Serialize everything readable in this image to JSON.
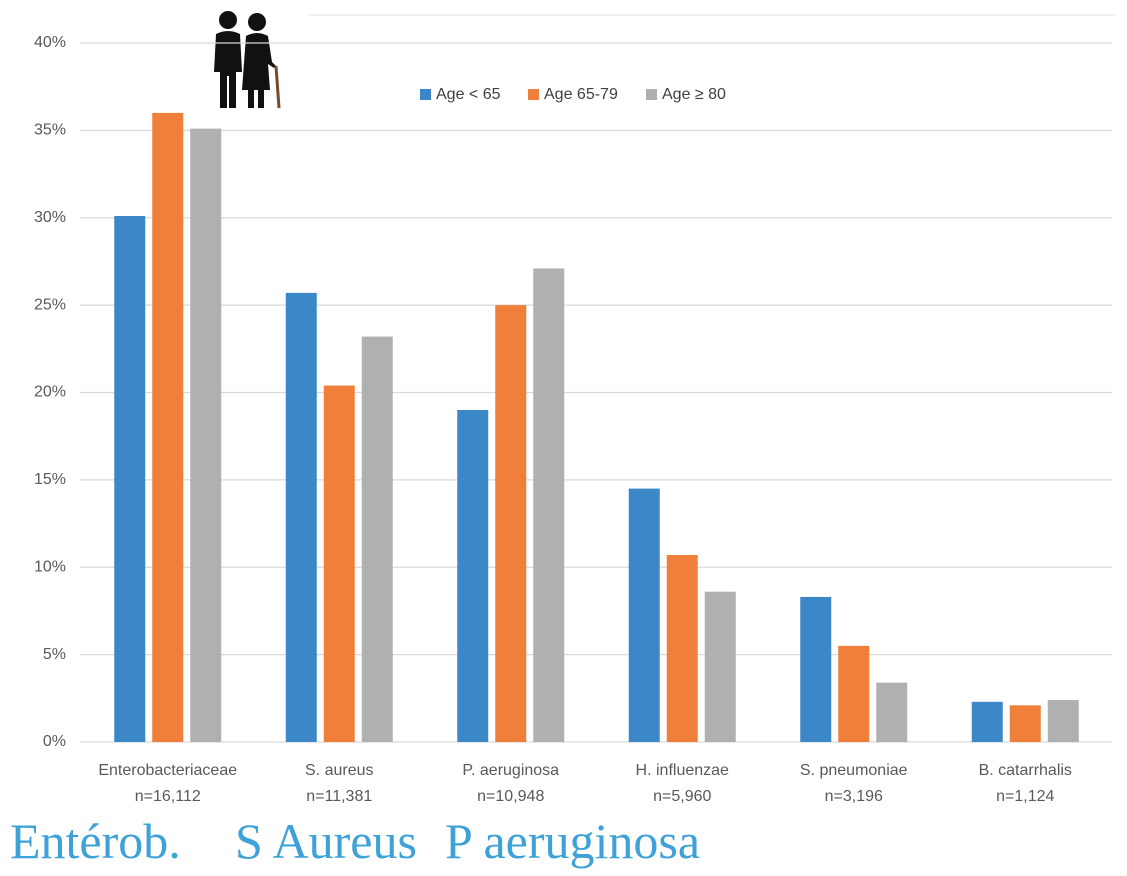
{
  "chart_data": {
    "type": "bar",
    "categories": [
      "Enterobacteriaceae",
      "S. aureus",
      "P. aeruginosa",
      "H. influenzae",
      "S. pneumoniae",
      "B. catarrhalis"
    ],
    "category_sublabels": [
      "n=16,112",
      "n=11,381",
      "n=10,948",
      "n=5,960",
      "n=3,196",
      "n=1,124"
    ],
    "series": [
      {
        "name": "Age < 65",
        "color": "#3c87c8",
        "values": [
          30.1,
          25.7,
          19.0,
          14.5,
          8.3,
          2.3
        ]
      },
      {
        "name": "Age 65-79",
        "color": "#ef7f3a",
        "values": [
          36.0,
          20.4,
          25.0,
          10.7,
          5.5,
          2.1
        ]
      },
      {
        "name": "Age ≥ 80",
        "color": "#b0b0b1",
        "values": [
          35.1,
          23.2,
          27.1,
          8.6,
          3.4,
          2.4
        ]
      }
    ],
    "ylim": [
      0,
      40
    ],
    "yticks": [
      {
        "value": 0,
        "label": "0%"
      },
      {
        "value": 5,
        "label": "5%"
      },
      {
        "value": 10,
        "label": "10%"
      },
      {
        "value": 15,
        "label": "15%"
      },
      {
        "value": 20,
        "label": "20%"
      },
      {
        "value": 25,
        "label": "25%"
      },
      {
        "value": 30,
        "label": "30%"
      },
      {
        "value": 35,
        "label": "35%"
      },
      {
        "value": 40,
        "label": "40%"
      }
    ],
    "grid": true,
    "legend": "top",
    "annotations": [
      "Entérob.",
      "S Aureus",
      "P aeruginosa"
    ]
  }
}
